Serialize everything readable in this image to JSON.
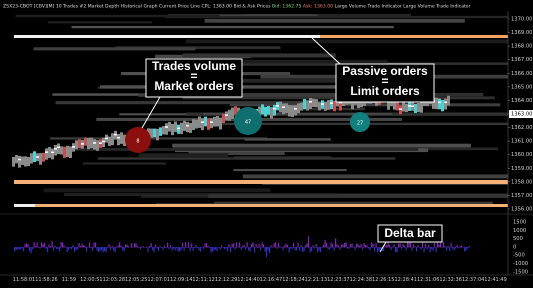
{
  "header": {
    "text": "ZSX23-CBOT [CBV][M]  10 Trades  #2 Market Depth Historical Graph  Current Price Line  CPL: 1363.00  Bid & Ask Prices",
    "bid": "Bid: 1362.75",
    "ask": "Ask: 1363.00",
    "tail": "Large Volume Trade Indicator  Large Volume Trade Indicator"
  },
  "price_axis": [
    "1370.00",
    "1369.00",
    "1368.00",
    "1367.00",
    "1366.00",
    "1365.00",
    "1364.00",
    "1363.00",
    "1362.00",
    "1361.00",
    "1360.00",
    "1359.00",
    "1358.00",
    "1357.00",
    "1356.00"
  ],
  "current_price": "1363.00",
  "delta_axis": [
    "1500",
    "1000",
    "500",
    "0",
    "-500",
    "-1000",
    "-1500"
  ],
  "time_axis": [
    "11:58:01",
    "11:58:26",
    "11:59",
    "12:00:51",
    "12:03:28",
    "12:05:25",
    "12:07:01",
    "12:09:14",
    "12:11:12",
    "12:12:29",
    "12:14:40",
    "12:16:47",
    "12:18:24",
    "12:21:13",
    "12:23:37",
    "12:24:38",
    "12:26:15",
    "12:28:41",
    "12:31:06",
    "12:32:36",
    "12:37:04",
    "12:41:49"
  ],
  "bubbles": [
    "8",
    "47",
    "27"
  ],
  "annotations": {
    "market": [
      "Trades volume",
      "=",
      "Market orders"
    ],
    "limit": [
      "Passive orders",
      "=",
      "Limit orders"
    ],
    "delta": "Delta bar"
  }
}
